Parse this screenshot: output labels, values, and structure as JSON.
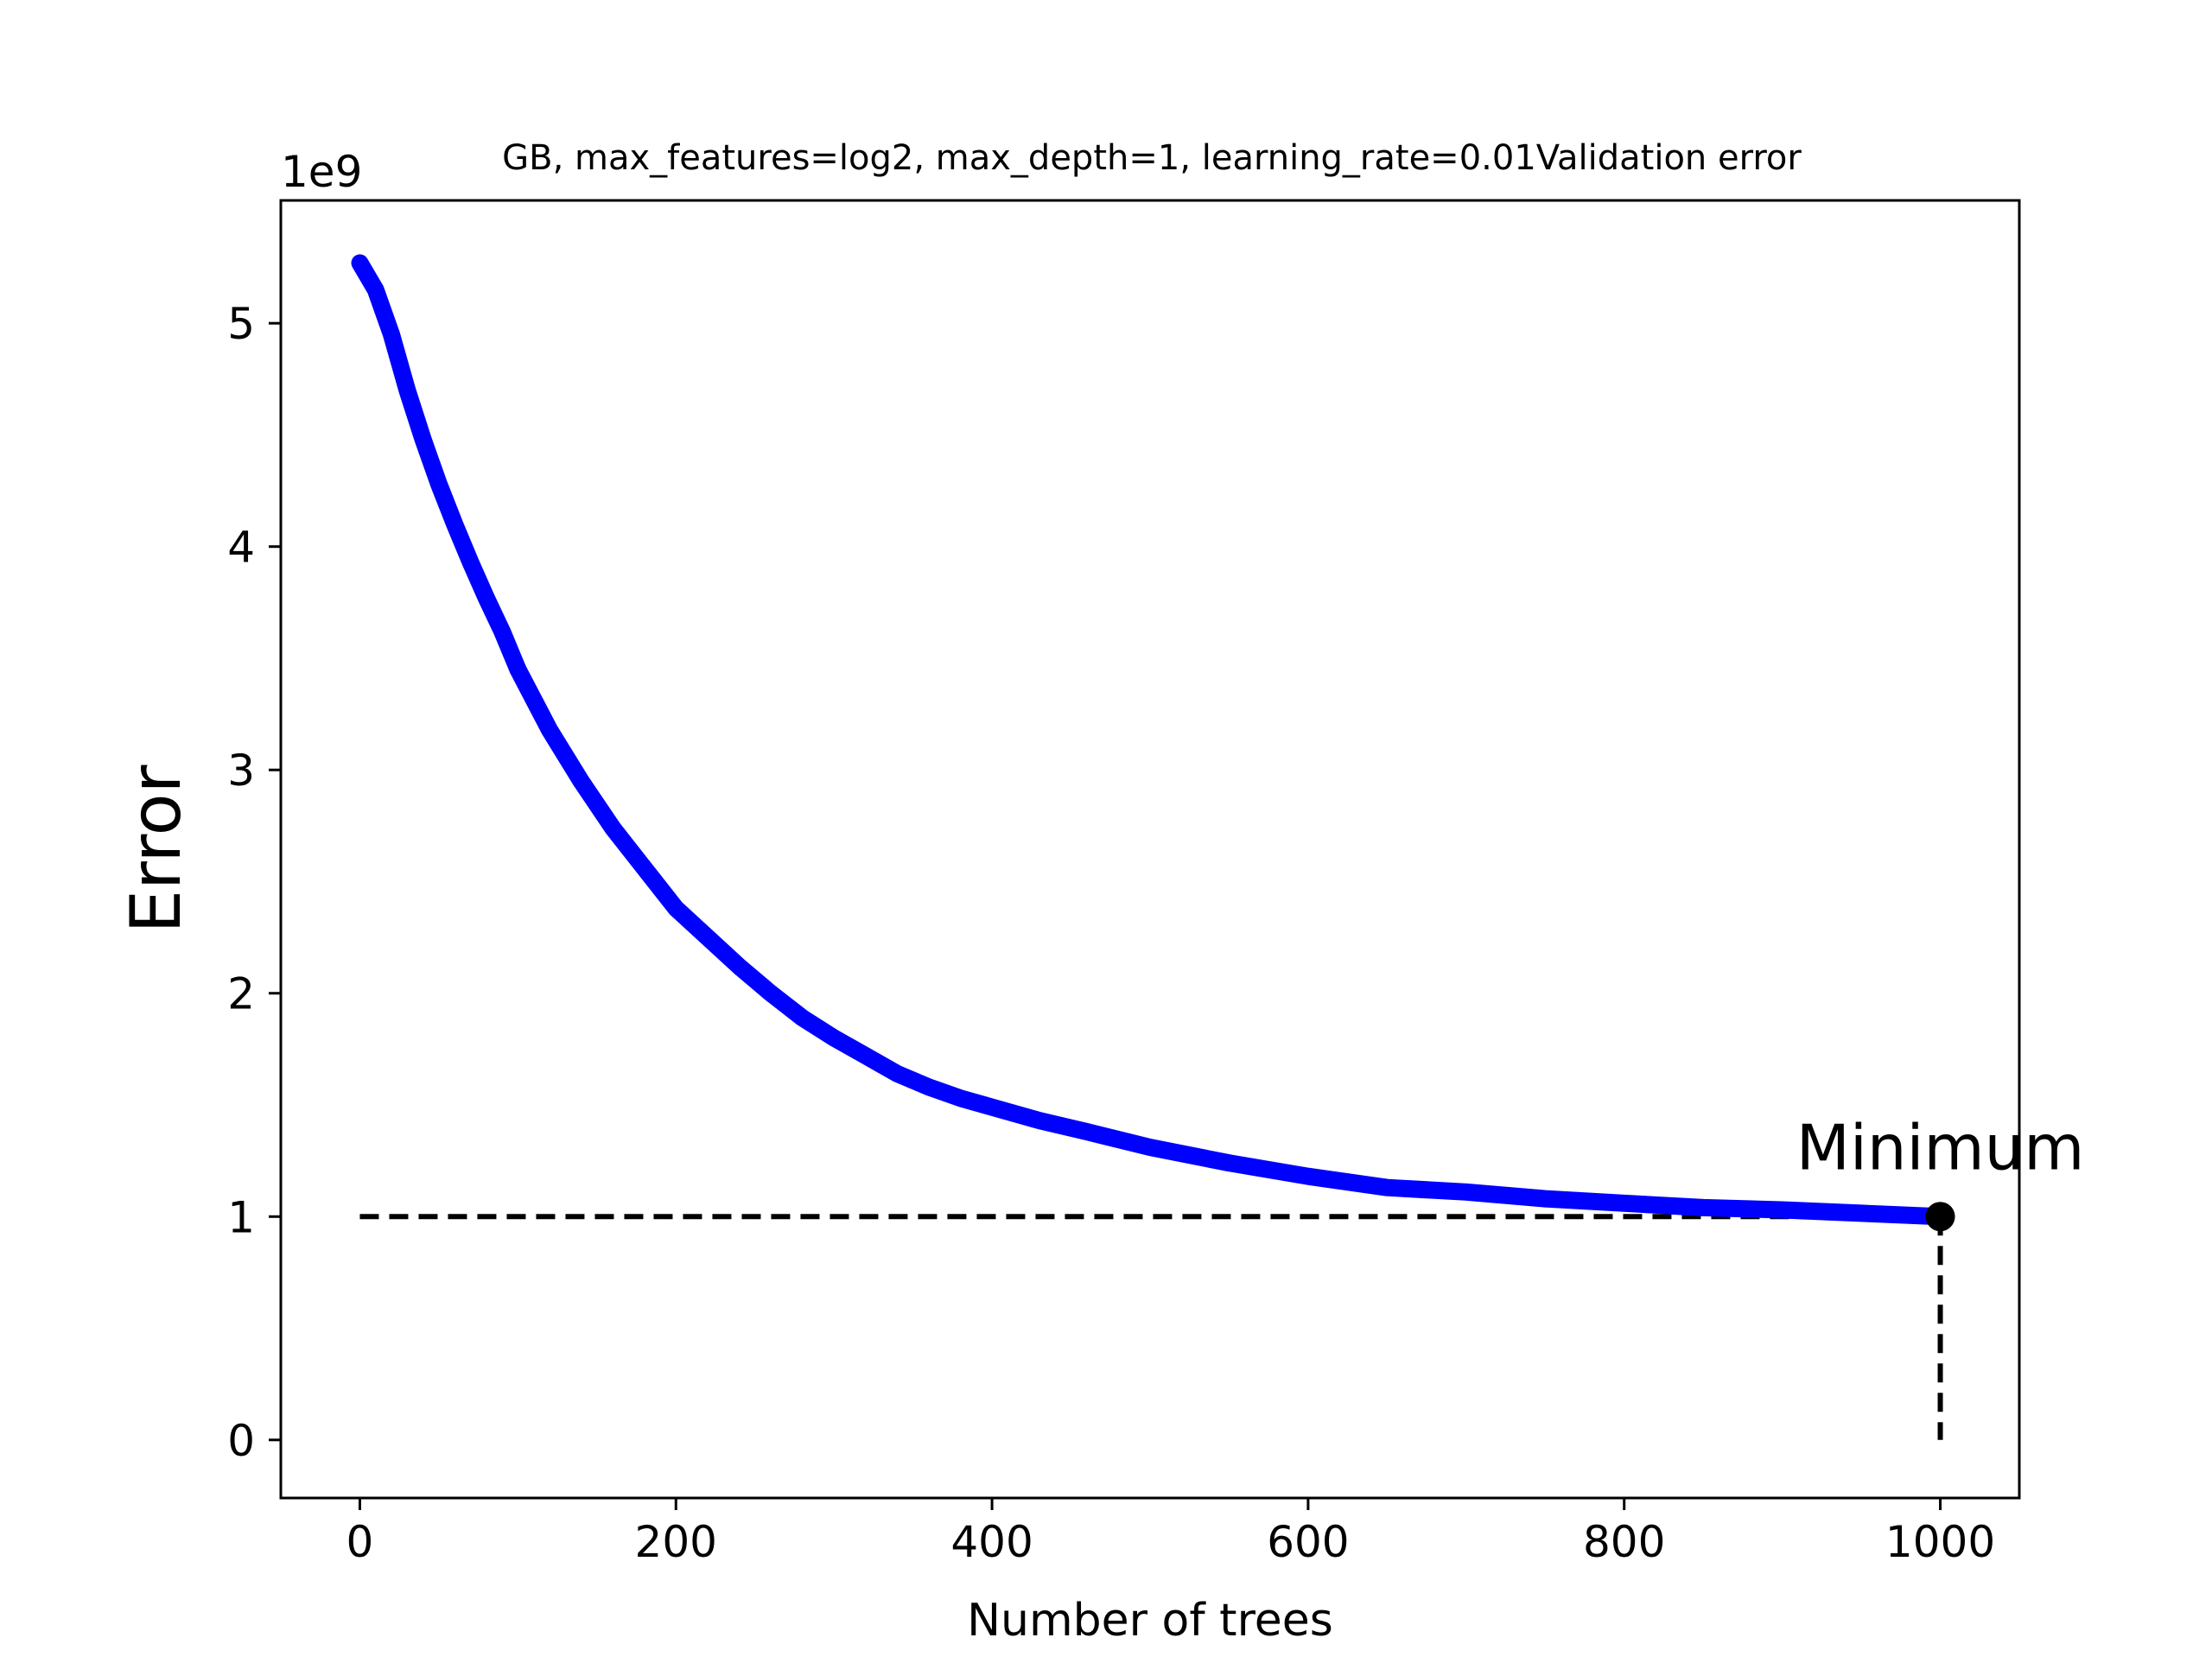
{
  "chart_data": {
    "type": "line",
    "title": "GB, max_features=log2, max_depth=1, learning_rate=0.01Validation error",
    "xlabel": "Number of trees",
    "ylabel": "Error",
    "y_offset_text": "1e9",
    "xlim": [
      -50,
      1050
    ],
    "ylim": [
      -0.26,
      5.55
    ],
    "y_scale_multiplier": 1000000000,
    "x_ticks": [
      0,
      200,
      400,
      600,
      800,
      1000
    ],
    "y_ticks": [
      0,
      1,
      2,
      3,
      4,
      5
    ],
    "grid": false,
    "series": [
      {
        "color": "#0000ff",
        "x": [
          0,
          10,
          20,
          30,
          40,
          50,
          60,
          70,
          80,
          90,
          100,
          120,
          140,
          160,
          180,
          200,
          220,
          240,
          260,
          280,
          300,
          320,
          340,
          360,
          380,
          400,
          430,
          460,
          500,
          550,
          600,
          650,
          700,
          750,
          800,
          850,
          900,
          950,
          1000
        ],
        "values": [
          5.27,
          5.15,
          4.95,
          4.7,
          4.48,
          4.28,
          4.1,
          3.93,
          3.77,
          3.62,
          3.45,
          3.18,
          2.95,
          2.74,
          2.56,
          2.38,
          2.25,
          2.12,
          2.0,
          1.89,
          1.8,
          1.72,
          1.64,
          1.58,
          1.53,
          1.49,
          1.43,
          1.38,
          1.31,
          1.24,
          1.18,
          1.13,
          1.11,
          1.08,
          1.06,
          1.04,
          1.03,
          1.015,
          1.0
        ]
      }
    ],
    "annotations": [
      {
        "text": "Minimum",
        "x": 1000,
        "y": 1.0
      }
    ],
    "minimum_marker": {
      "x": 1000,
      "y": 1.0,
      "color": "#000000"
    }
  }
}
